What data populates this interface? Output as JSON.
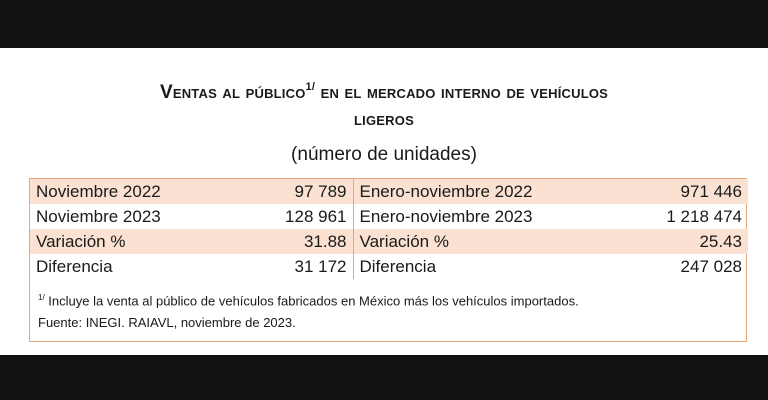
{
  "title": {
    "line1": "Ventas al público",
    "sup": "1/",
    "line1b": " en el mercado interno de vehículos",
    "line2": "ligeros"
  },
  "subtitle": "(número de unidades)",
  "table": {
    "rows": [
      {
        "left_label": "Noviembre 2022",
        "left_value": "97 789",
        "right_label": "Enero-noviembre 2022",
        "right_value": "971 446"
      },
      {
        "left_label": "Noviembre 2023",
        "left_value": "128 961",
        "right_label": "Enero-noviembre 2023",
        "right_value": "1 218 474"
      },
      {
        "left_label": "Variación %",
        "left_value": "31.88",
        "right_label": "Variación %",
        "right_value": "25.43"
      },
      {
        "left_label": "Diferencia",
        "left_value": "31 172",
        "right_label": "Diferencia",
        "right_value": "247 028"
      }
    ]
  },
  "notes": {
    "footnote_mark": "1/",
    "footnote": " Incluye la venta al público de vehículos fabricados en México más los vehículos importados.",
    "source": "Fuente: INEGI. RAIAVL, noviembre de 2023."
  },
  "colors": {
    "shade": "#fbe1d2",
    "border": "#e7a77b",
    "band": "#111111"
  }
}
